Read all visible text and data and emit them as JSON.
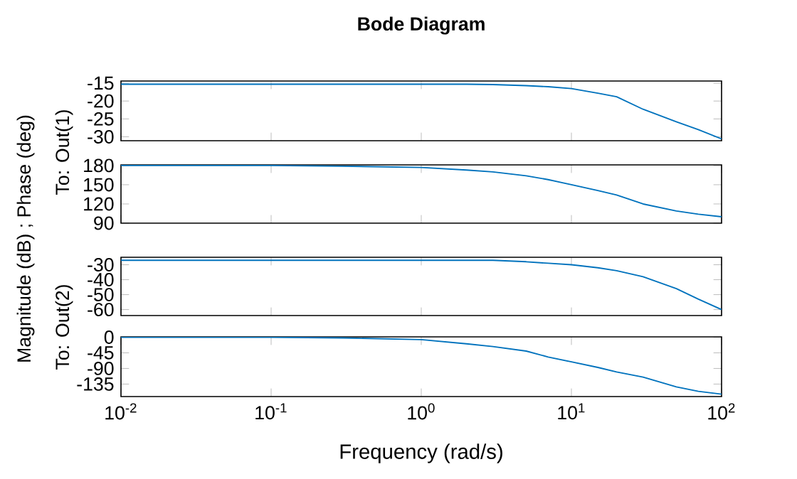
{
  "chart_data": [
    {
      "type": "line",
      "title": "Bode Diagram",
      "ylabel": "To: Out(1)",
      "log": "x",
      "xlim": [
        0.01,
        100
      ],
      "ylim": [
        -31.1,
        -14.4
      ],
      "yticks": [
        -15,
        -20,
        -25,
        -30
      ],
      "tick_labels": "y",
      "xticks": [
        {
          "value": 0.01,
          "label": null
        },
        {
          "value": 0.1,
          "label": null
        },
        {
          "value": 1,
          "label": null
        },
        {
          "value": 10,
          "label": null
        },
        {
          "value": 100,
          "label": null
        }
      ],
      "x": [
        0.01,
        0.1,
        0.3,
        1,
        2,
        3,
        5,
        7,
        10,
        15,
        20,
        30,
        50,
        70,
        100
      ],
      "series": [
        {
          "color": "#0072bd",
          "values": [
            -15.3,
            -15.3,
            -15.3,
            -15.3,
            -15.3,
            -15.4,
            -15.7,
            -16.0,
            -16.5,
            -17.8,
            -18.8,
            -22.3,
            -25.8,
            -28.0,
            -30.6
          ]
        }
      ]
    },
    {
      "type": "line",
      "ylabel": "Magnitude (dB) ; Phase (deg)",
      "log": "x",
      "xlim": [
        0.01,
        100
      ],
      "ylim": [
        90,
        181
      ],
      "yticks": [
        180,
        150,
        120,
        90
      ],
      "tick_labels": "y",
      "xticks": [
        {
          "value": 0.01,
          "label": null
        },
        {
          "value": 0.1,
          "label": null
        },
        {
          "value": 1,
          "label": null
        },
        {
          "value": 10,
          "label": null
        },
        {
          "value": 100,
          "label": null
        }
      ],
      "x": [
        0.01,
        0.1,
        0.3,
        1,
        2,
        3,
        5,
        7,
        10,
        15,
        20,
        30,
        50,
        70,
        100
      ],
      "series": [
        {
          "color": "#0072bd",
          "values": [
            180,
            180,
            179,
            177,
            173,
            170,
            164,
            158,
            150,
            141,
            134,
            120,
            109,
            104,
            100
          ]
        }
      ]
    },
    {
      "type": "line",
      "ylabel": "To: Out(2)",
      "log": "x",
      "xlim": [
        0.01,
        100
      ],
      "ylim": [
        -64,
        -25
      ],
      "yticks": [
        -30,
        -40,
        -50,
        -60
      ],
      "tick_labels": "y",
      "xticks": [
        {
          "value": 0.01,
          "label": null
        },
        {
          "value": 0.1,
          "label": null
        },
        {
          "value": 1,
          "label": null
        },
        {
          "value": 10,
          "label": null
        },
        {
          "value": 100,
          "label": null
        }
      ],
      "x": [
        0.01,
        0.1,
        0.3,
        1,
        2,
        3,
        5,
        7,
        10,
        15,
        20,
        30,
        50,
        70,
        100
      ],
      "series": [
        {
          "color": "#0072bd",
          "values": [
            -27,
            -27,
            -27,
            -27,
            -27,
            -27,
            -28,
            -29,
            -30,
            -32,
            -34,
            -38,
            -46,
            -53,
            -60
          ]
        }
      ]
    },
    {
      "type": "line",
      "xlabel": "Frequency (rad/s)",
      "log": "x",
      "xlim": [
        0.01,
        100
      ],
      "ylim": [
        -171,
        1
      ],
      "yticks": [
        0,
        -45,
        -90,
        -135
      ],
      "xticks": [
        {
          "value": 0.01,
          "label": "10$^{-2}$"
        },
        {
          "value": 0.1,
          "label": "10$^{-1}$"
        },
        {
          "value": 1,
          "label": "10$^{0}$"
        },
        {
          "value": 10,
          "label": "10$^{1}$"
        },
        {
          "value": 100,
          "label": "10$^{2}$"
        }
      ],
      "x": [
        0.01,
        0.1,
        0.3,
        1,
        2,
        3,
        5,
        7,
        10,
        15,
        20,
        30,
        50,
        70,
        100
      ],
      "series": [
        {
          "color": "#0072bd",
          "values": [
            0,
            0,
            -2,
            -7,
            -19,
            -27,
            -40,
            -57,
            -71,
            -87,
            -100,
            -115,
            -143,
            -156,
            -164
          ]
        }
      ]
    }
  ]
}
